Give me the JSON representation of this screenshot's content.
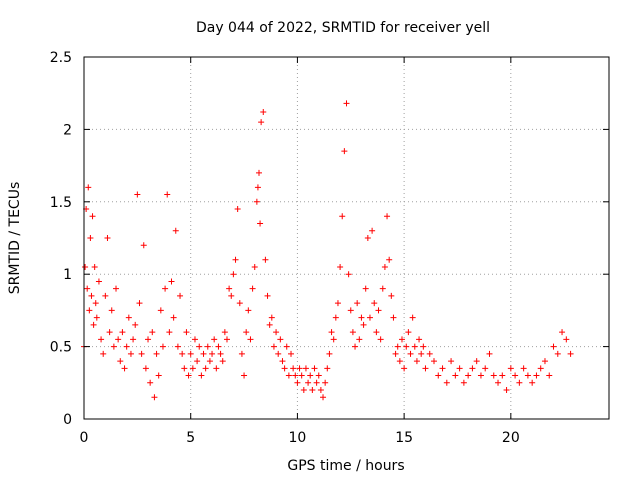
{
  "chart_data": {
    "type": "scatter",
    "title": "Day 044 of 2022, SRMTID for receiver yell",
    "xlabel": "GPS time / hours",
    "ylabel": "SRMTID / TECUs",
    "xlim": [
      0,
      24.6
    ],
    "ylim": [
      0,
      2.5
    ],
    "xticks": [
      0,
      5,
      10,
      15,
      20
    ],
    "xtick_labels": [
      "0",
      "5",
      "10",
      "15",
      "20"
    ],
    "yticks": [
      0,
      0.5,
      1,
      1.5,
      2,
      2.5
    ],
    "ytick_labels": [
      "0",
      "0.5",
      "1",
      "1.5",
      "2",
      "2.5"
    ],
    "grid": true,
    "marker": "+",
    "series": [
      {
        "name": "SRMTID",
        "color": "#ff0000",
        "x": [
          0.0,
          0.05,
          0.1,
          0.15,
          0.2,
          0.25,
          0.3,
          0.35,
          0.4,
          0.45,
          0.5,
          0.55,
          0.6,
          0.7,
          0.8,
          0.9,
          1.0,
          1.1,
          1.2,
          1.3,
          1.4,
          1.5,
          1.6,
          1.7,
          1.8,
          1.9,
          2.0,
          2.1,
          2.2,
          2.3,
          2.4,
          2.5,
          2.6,
          2.7,
          2.8,
          2.9,
          3.0,
          3.1,
          3.2,
          3.3,
          3.4,
          3.5,
          3.6,
          3.7,
          3.8,
          3.9,
          4.0,
          4.1,
          4.2,
          4.3,
          4.4,
          4.5,
          4.6,
          4.7,
          4.8,
          4.9,
          5.0,
          5.1,
          5.2,
          5.3,
          5.4,
          5.5,
          5.6,
          5.7,
          5.8,
          5.9,
          6.0,
          6.1,
          6.2,
          6.3,
          6.4,
          6.5,
          6.6,
          6.7,
          6.8,
          6.9,
          7.0,
          7.1,
          7.2,
          7.3,
          7.4,
          7.5,
          7.6,
          7.7,
          7.8,
          7.9,
          8.0,
          8.1,
          8.15,
          8.2,
          8.25,
          8.3,
          8.4,
          8.5,
          8.6,
          8.7,
          8.8,
          8.9,
          9.0,
          9.1,
          9.2,
          9.3,
          9.4,
          9.5,
          9.6,
          9.7,
          9.8,
          9.9,
          10.0,
          10.1,
          10.2,
          10.3,
          10.4,
          10.5,
          10.6,
          10.7,
          10.8,
          10.9,
          11.0,
          11.1,
          11.2,
          11.3,
          11.4,
          11.5,
          11.6,
          11.7,
          11.8,
          11.9,
          12.0,
          12.1,
          12.2,
          12.3,
          12.4,
          12.5,
          12.6,
          12.7,
          12.8,
          12.9,
          13.0,
          13.1,
          13.2,
          13.3,
          13.4,
          13.5,
          13.6,
          13.7,
          13.8,
          13.9,
          14.0,
          14.1,
          14.2,
          14.3,
          14.4,
          14.5,
          14.6,
          14.7,
          14.8,
          14.9,
          15.0,
          15.1,
          15.2,
          15.3,
          15.4,
          15.5,
          15.6,
          15.7,
          15.8,
          15.9,
          16.0,
          16.2,
          16.4,
          16.6,
          16.8,
          17.0,
          17.2,
          17.4,
          17.6,
          17.8,
          18.0,
          18.2,
          18.4,
          18.6,
          18.8,
          19.0,
          19.2,
          19.4,
          19.6,
          19.8,
          20.0,
          20.2,
          20.4,
          20.6,
          20.8,
          21.0,
          21.2,
          21.4,
          21.6,
          21.8,
          22.0,
          22.2,
          22.4,
          22.6,
          22.8
        ],
        "y": [
          0.5,
          1.05,
          1.45,
          0.9,
          1.6,
          0.75,
          1.25,
          0.85,
          1.4,
          0.65,
          1.05,
          0.8,
          0.7,
          0.95,
          0.55,
          0.45,
          0.85,
          1.25,
          0.6,
          0.75,
          0.5,
          0.9,
          0.55,
          0.4,
          0.6,
          0.35,
          0.5,
          0.7,
          0.45,
          0.55,
          0.65,
          1.55,
          0.8,
          0.45,
          1.2,
          0.35,
          0.55,
          0.25,
          0.6,
          0.15,
          0.45,
          0.3,
          0.75,
          0.5,
          0.9,
          1.55,
          0.6,
          0.95,
          0.7,
          1.3,
          0.5,
          0.85,
          0.45,
          0.35,
          0.6,
          0.3,
          0.45,
          0.35,
          0.55,
          0.4,
          0.5,
          0.3,
          0.45,
          0.35,
          0.5,
          0.4,
          0.45,
          0.55,
          0.35,
          0.5,
          0.45,
          0.4,
          0.6,
          0.55,
          0.9,
          0.85,
          1.0,
          1.1,
          1.45,
          0.8,
          0.45,
          0.3,
          0.6,
          0.75,
          0.55,
          0.9,
          1.05,
          1.5,
          1.6,
          1.7,
          1.35,
          2.05,
          2.12,
          1.1,
          0.85,
          0.65,
          0.7,
          0.5,
          0.6,
          0.45,
          0.55,
          0.4,
          0.35,
          0.5,
          0.3,
          0.45,
          0.35,
          0.3,
          0.25,
          0.35,
          0.3,
          0.2,
          0.35,
          0.25,
          0.3,
          0.2,
          0.35,
          0.25,
          0.3,
          0.2,
          0.15,
          0.25,
          0.35,
          0.45,
          0.6,
          0.55,
          0.7,
          0.8,
          1.05,
          1.4,
          1.85,
          2.18,
          1.0,
          0.75,
          0.6,
          0.5,
          0.8,
          0.55,
          0.7,
          0.65,
          0.9,
          1.25,
          0.7,
          1.3,
          0.8,
          0.6,
          0.75,
          0.55,
          0.9,
          1.05,
          1.4,
          1.1,
          0.85,
          0.7,
          0.45,
          0.5,
          0.4,
          0.55,
          0.35,
          0.5,
          0.6,
          0.45,
          0.7,
          0.5,
          0.4,
          0.55,
          0.45,
          0.5,
          0.35,
          0.45,
          0.4,
          0.3,
          0.35,
          0.25,
          0.4,
          0.3,
          0.35,
          0.25,
          0.3,
          0.35,
          0.4,
          0.3,
          0.35,
          0.45,
          0.3,
          0.25,
          0.3,
          0.2,
          0.35,
          0.3,
          0.25,
          0.35,
          0.3,
          0.25,
          0.3,
          0.35,
          0.4,
          0.3,
          0.5,
          0.45,
          0.6,
          0.55,
          0.45
        ]
      }
    ]
  }
}
